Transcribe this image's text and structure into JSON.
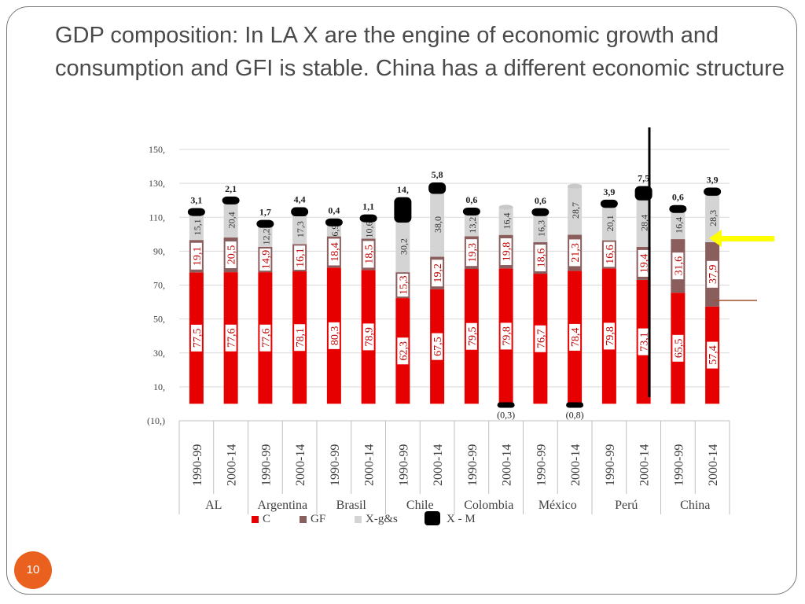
{
  "slide": {
    "title": "GDP composition: In LA  X are the engine of economic growth and consumption and GFI is stable. China has a different economic structure",
    "page_number": "10"
  },
  "colors": {
    "C": "#e60000",
    "GF": "#8b5e5e",
    "Xgs": "#d4d4d4",
    "XM": "#000000",
    "arrow": "#ffff00",
    "badge": "#e9601f",
    "brown_line": "#a0522d"
  },
  "chart_data": {
    "type": "bar",
    "stacked": true,
    "title": "",
    "xlabel": "",
    "ylabel": "",
    "ylim": [
      -10,
      150
    ],
    "y_ticks": [
      -10,
      10,
      30,
      50,
      70,
      90,
      110,
      130,
      150
    ],
    "y_tick_labels": [
      "(10,)",
      "10,",
      "30,",
      "50,",
      "70,",
      "90,",
      "110,",
      "130,",
      "150,"
    ],
    "groups": [
      "AL",
      "Argentina",
      "Brasil",
      "Chile",
      "Colombia",
      "México",
      "Perú",
      "China"
    ],
    "periods": [
      "1990-99",
      "2000-14"
    ],
    "series": [
      {
        "name": "C",
        "key": "C",
        "values": [
          77.5,
          77.6,
          77.6,
          78.1,
          80.3,
          78.9,
          62.3,
          67.5,
          79.5,
          79.8,
          76.7,
          78.4,
          79.8,
          73.1,
          65.5,
          57.4
        ],
        "labels": [
          "77,5",
          "77,6",
          "77,6",
          "78,1",
          "80,3",
          "78,9",
          "62,3",
          "67,5",
          "79,5",
          "79,8",
          "76,7",
          "78,4",
          "79,8",
          "73,1",
          "65,5",
          "57,4"
        ]
      },
      {
        "name": "GF",
        "key": "GF",
        "values": [
          19.1,
          20.5,
          14.9,
          16.1,
          18.4,
          18.5,
          15.3,
          19.2,
          19.3,
          19.8,
          18.6,
          21.3,
          16.6,
          19.4,
          31.6,
          37.9
        ],
        "labels": [
          "19,1",
          "20,5",
          "14,9",
          "16,1",
          "18,4",
          "18,5",
          "15,3",
          "19,2",
          "19,3",
          "19,8",
          "18,6",
          "21,3",
          "16,6",
          "19,4",
          "31,6",
          "37,9"
        ]
      },
      {
        "name": "X-g&s",
        "key": "Xgs",
        "values": [
          15.1,
          20.4,
          12.2,
          17.3,
          6.9,
          10.6,
          30.2,
          38.0,
          13.2,
          16.4,
          16.3,
          28.7,
          20.1,
          28.4,
          16.4,
          28.3
        ],
        "labels": [
          "15,1",
          "20,4",
          "12,2",
          "17,3",
          "6,9",
          "10,6",
          "30,2",
          "38,0",
          "13,2",
          "16,4",
          "16,3",
          "28,7",
          "20,1",
          "28,4",
          "16,4",
          "28,3"
        ]
      },
      {
        "name": "X - M",
        "key": "XM",
        "values": [
          3.1,
          2.1,
          1.7,
          4.4,
          0.4,
          1.1,
          14.0,
          5.8,
          0.6,
          -0.3,
          0.6,
          -0.8,
          3.9,
          7.5,
          0.6,
          3.9
        ],
        "labels": [
          "3,1",
          "2,1",
          "1,7",
          "4,4",
          "0,4",
          "1,1",
          "14,",
          "5,8",
          "0,6",
          "(0,3)",
          "0,6",
          "(0,8)",
          "3,9",
          "7,5",
          "0,6",
          "3,9"
        ]
      }
    ],
    "legend": {
      "position": "bottom",
      "entries": [
        {
          "key": "C",
          "label": "C"
        },
        {
          "key": "GF",
          "label": "GF"
        },
        {
          "key": "Xgs",
          "label": "X-g&s"
        },
        {
          "key": "XM",
          "label": "X - M"
        }
      ]
    }
  }
}
